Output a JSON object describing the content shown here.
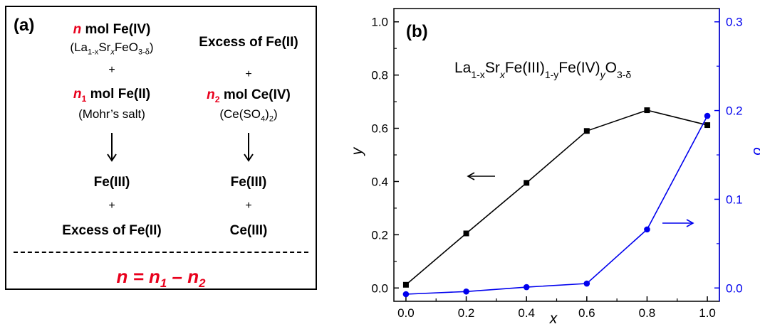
{
  "panel_a": {
    "label": "(a)",
    "left": {
      "n_symbol": "n",
      "fe4_text": " mol Fe(IV)",
      "compound_la": "(La",
      "compound_1x": "1-x",
      "compound_sr": "Sr",
      "compound_x": "x",
      "compound_feo": "FeO",
      "compound_3d": "3-δ",
      "compound_close": ")",
      "plus1": "+",
      "n1_symbol": "n",
      "n1_sub": "1",
      "fe2_text": " mol Fe(II)",
      "mohr": "(Mohr’s salt)",
      "fe3": "Fe(III)",
      "plus2": "+",
      "excess": "Excess of Fe(II)"
    },
    "right": {
      "excess": "Excess of Fe(II)",
      "plus1": "+",
      "n2_symbol": "n",
      "n2_sub": "2",
      "ce4_text": " mol Ce(IV)",
      "ceso4_a": "(Ce(SO",
      "ceso4_sub": "4",
      "ceso4_b": ")",
      "ceso4_sub2": "2",
      "ceso4_c": ")",
      "fe3": "Fe(III)",
      "plus2": "+",
      "ce3": "Ce(III)"
    },
    "formula": {
      "n": "n = n",
      "sub1": "1",
      "minus": " – n",
      "sub2": "2"
    }
  },
  "panel_b_label": "(b)",
  "chart_data": {
    "type": "line",
    "title_parts": {
      "a": "La",
      "a_sub": "1-x",
      "b": "Sr",
      "b_sub": "x",
      "c": "Fe(III)",
      "c_sub": "1-y",
      "d": "Fe(IV)",
      "d_sub": "y",
      "e": "O",
      "e_sub": "3-δ"
    },
    "xlabel": "x",
    "ylabel_left": "y",
    "ylabel_right": "δ",
    "xlim": [
      -0.04,
      1.04
    ],
    "ylim_left": [
      -0.05,
      1.05
    ],
    "ylim_right": [
      -0.015,
      0.315
    ],
    "x_ticks": [
      "0.0",
      "0.2",
      "0.4",
      "0.6",
      "0.8",
      "1.0"
    ],
    "y_left_ticks": [
      "0.0",
      "0.2",
      "0.4",
      "0.6",
      "0.8",
      "1.0"
    ],
    "y_right_ticks": [
      "0.0",
      "0.1",
      "0.2",
      "0.3"
    ],
    "series": [
      {
        "axis": "left",
        "color": "#000000",
        "marker": "square",
        "x": [
          0.0,
          0.2,
          0.4,
          0.6,
          0.8,
          1.0
        ],
        "values": [
          0.012,
          0.205,
          0.395,
          0.59,
          0.668,
          0.612
        ]
      },
      {
        "axis": "right",
        "color": "#0000ee",
        "marker": "circle",
        "x": [
          0.0,
          0.2,
          0.4,
          0.6,
          0.8,
          1.0
        ],
        "values": [
          -0.007,
          -0.004,
          0.001,
          0.005,
          0.066,
          0.194
        ]
      }
    ]
  }
}
